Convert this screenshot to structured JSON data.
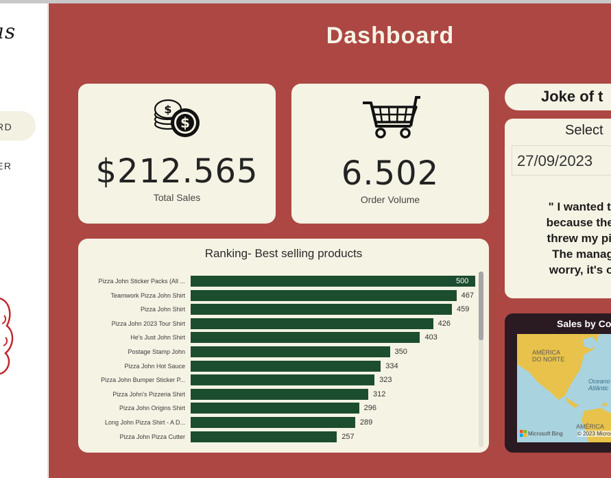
{
  "sidebar": {
    "logo_text": "as",
    "nav": [
      {
        "label": "RD",
        "active": true
      },
      {
        "label": "ER",
        "active": false
      }
    ]
  },
  "header": {
    "title": "Dashboard"
  },
  "kpis": {
    "total_sales": {
      "value": "$212.565",
      "label": "Total Sales",
      "icon": "coins-icon"
    },
    "order_volume": {
      "value": "6.502",
      "label": "Order Volume",
      "icon": "cart-icon"
    }
  },
  "ranking": {
    "title": "Ranking- Best selling products",
    "bar_color": "#1b4d2e"
  },
  "chart_data": {
    "type": "bar",
    "orientation": "horizontal",
    "title": "Ranking- Best selling products",
    "categories": [
      "Pizza John Sticker Packs (All ...",
      "Teamwork Pizza John Shirt",
      "Pizza John Shirt",
      "Pizza John 2023 Tour Shirt",
      "He's Just John Shirt",
      "Postage Stamp John",
      "Pizza John Hot Sauce",
      "Pizza John Bumper Sticker P...",
      "Pizza John's Pizzeria Shirt",
      "Pizza John Origins Shirt",
      "Long John Pizza Shirt - A D...",
      "Pizza John Pizza Cutter"
    ],
    "values": [
      500,
      467,
      459,
      426,
      403,
      350,
      334,
      323,
      312,
      296,
      289,
      257
    ],
    "xlim": [
      0,
      500
    ]
  },
  "joke": {
    "heading": "Joke of t",
    "select_label": "Select",
    "date_value": "27/09/2023",
    "lines": [
      "\" I wanted to g",
      "because the de",
      "threw my pizza",
      "The manager",
      "worry, it's on t"
    ]
  },
  "map": {
    "title": "Sales by Co",
    "labels": {
      "north_america": [
        "AMÉRICA",
        "DO NORTE"
      ],
      "ocean": [
        "Oceano",
        "Atlântic"
      ],
      "south_america": "AMÉRICA"
    },
    "attribution": "Microsoft Bing",
    "copyright": "© 2023 Micros",
    "land_color": "#e8c24a",
    "water_color": "#a9d3df"
  },
  "colors": {
    "background": "#ad4743",
    "card": "#f5f3e4",
    "bar": "#1b4d2e"
  }
}
